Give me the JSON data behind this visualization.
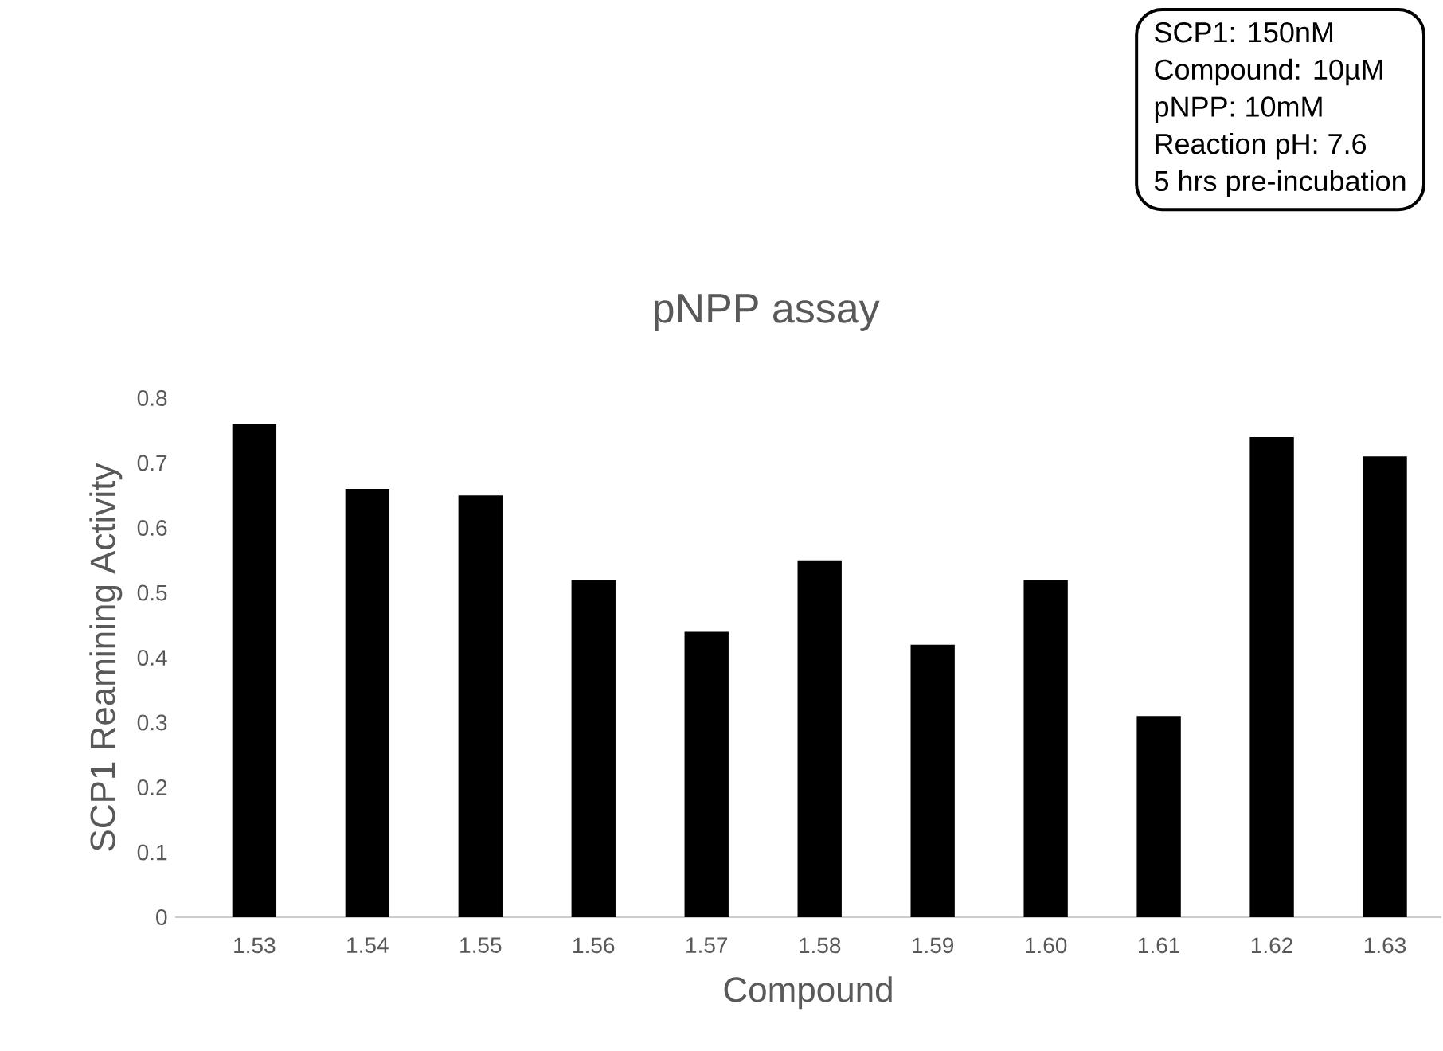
{
  "chart_data": {
    "type": "bar",
    "title": "pNPP assay",
    "xlabel": "Compound",
    "ylabel": "SCP1 Reamining Activity",
    "categories": [
      "1.53",
      "1.54",
      "1.55",
      "1.56",
      "1.57",
      "1.58",
      "1.59",
      "1.60",
      "1.61",
      "1.62",
      "1.63"
    ],
    "values": [
      0.76,
      0.66,
      0.65,
      0.52,
      0.44,
      0.55,
      0.42,
      0.52,
      0.31,
      0.74,
      0.71
    ],
    "color": "#000000",
    "ylim": [
      0,
      0.8
    ],
    "yticks": [
      0,
      0.1,
      0.2,
      0.3,
      0.4,
      0.5,
      0.6,
      0.7,
      0.8
    ],
    "annotations": [
      "SCP1: 150nM",
      "Compound: 10µM",
      "pNPP: 10mM",
      "Reaction pH: 7.6",
      "5 hrs pre-incubation"
    ]
  }
}
